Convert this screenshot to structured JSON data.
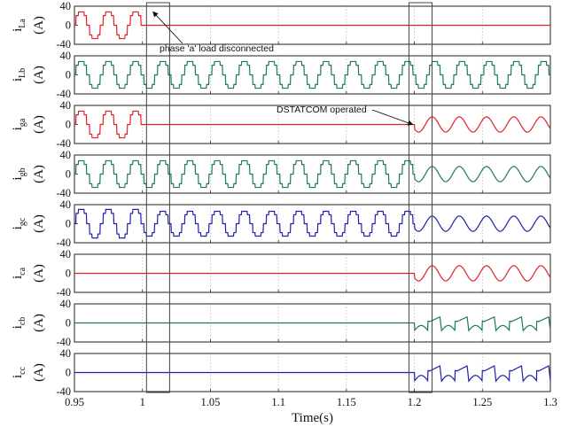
{
  "chart_data": {
    "type": "line",
    "xlabel": "Time(s)",
    "xlim": [
      0.95,
      1.3
    ],
    "x_ticks": [
      "0.95",
      "1",
      "1.05",
      "1.1",
      "1.15",
      "1.2",
      "1.25",
      "1.3"
    ],
    "grid": "vertical dotted at x ticks",
    "colors": {
      "phase_a": "#e0202a",
      "phase_b": "#1f7a56",
      "phase_c": "#2020a8"
    },
    "panels": [
      {
        "y_symbol": "i",
        "y_sub": "La",
        "unit": "(A)",
        "ylim": [
          -40,
          40
        ],
        "y_ticks": [
          "40",
          "0",
          "-40"
        ],
        "color": "#e0202a",
        "segments": [
          {
            "from": 0.95,
            "to": 1.0,
            "kind": "stepped",
            "amplitude": 28
          },
          {
            "from": 1.0,
            "to": 1.3,
            "kind": "zero"
          }
        ]
      },
      {
        "y_symbol": "i",
        "y_sub": "Lb",
        "unit": "(A)",
        "ylim": [
          -40,
          40
        ],
        "y_ticks": [
          "40",
          "0",
          "-40"
        ],
        "color": "#1f7a56",
        "segments": [
          {
            "from": 0.95,
            "to": 1.3,
            "kind": "stepped",
            "amplitude": 28
          }
        ]
      },
      {
        "y_symbol": "i",
        "y_sub": "ga",
        "unit": "(A)",
        "ylim": [
          -40,
          40
        ],
        "y_ticks": [
          "40",
          "0",
          "-40"
        ],
        "color": "#e0202a",
        "segments": [
          {
            "from": 0.95,
            "to": 1.0,
            "kind": "stepped",
            "amplitude": 28
          },
          {
            "from": 1.0,
            "to": 1.2,
            "kind": "zero"
          },
          {
            "from": 1.2,
            "to": 1.3,
            "kind": "sine",
            "amplitude": 16
          }
        ]
      },
      {
        "y_symbol": "i",
        "y_sub": "gb",
        "unit": "(A)",
        "ylim": [
          -40,
          40
        ],
        "y_ticks": [
          "40",
          "0",
          "-40"
        ],
        "color": "#1f7a56",
        "segments": [
          {
            "from": 0.95,
            "to": 1.2,
            "kind": "stepped",
            "amplitude": 28
          },
          {
            "from": 1.2,
            "to": 1.3,
            "kind": "sine",
            "amplitude": 16
          }
        ]
      },
      {
        "y_symbol": "i",
        "y_sub": "gc",
        "unit": "(A)",
        "ylim": [
          -40,
          40
        ],
        "y_ticks": [
          "40",
          "0",
          "-40"
        ],
        "color": "#2020a8",
        "segments": [
          {
            "from": 0.95,
            "to": 1.0,
            "kind": "stepped",
            "amplitude": 30
          },
          {
            "from": 1.0,
            "to": 1.2,
            "kind": "stepped",
            "amplitude": 26
          },
          {
            "from": 1.2,
            "to": 1.3,
            "kind": "sine",
            "amplitude": 16
          }
        ]
      },
      {
        "y_symbol": "i",
        "y_sub": "ca",
        "unit": "(A)",
        "ylim": [
          -40,
          40
        ],
        "y_ticks": [
          "40",
          "0",
          "-40"
        ],
        "color": "#e0202a",
        "segments": [
          {
            "from": 0.95,
            "to": 1.2,
            "kind": "zero"
          },
          {
            "from": 1.2,
            "to": 1.3,
            "kind": "sine",
            "amplitude": 16
          }
        ]
      },
      {
        "y_symbol": "i",
        "y_sub": "cb",
        "unit": "(A)",
        "ylim": [
          -40,
          40
        ],
        "y_ticks": [
          "40",
          "0",
          "-40"
        ],
        "color": "#1f7a56",
        "segments": [
          {
            "from": 0.95,
            "to": 1.2,
            "kind": "zero"
          },
          {
            "from": 1.2,
            "to": 1.3,
            "kind": "compensating",
            "amplitude": 18
          }
        ]
      },
      {
        "y_symbol": "i",
        "y_sub": "cc",
        "unit": "(A)",
        "ylim": [
          -40,
          40
        ],
        "y_ticks": [
          "40",
          "0",
          "-40"
        ],
        "color": "#2020a8",
        "segments": [
          {
            "from": 0.95,
            "to": 1.2,
            "kind": "zero"
          },
          {
            "from": 1.2,
            "to": 1.3,
            "kind": "compensating",
            "amplitude": 20
          }
        ]
      }
    ],
    "annotations": [
      {
        "text": "phase 'a' load disconnected",
        "target_x": 1.0,
        "target_panel": 0,
        "target_y": 28
      },
      {
        "text": "DSTATCOM operated",
        "target_x": 1.2,
        "target_panel": 2,
        "target_y": 0
      }
    ],
    "event_windows": [
      [
        1.003,
        1.02
      ],
      [
        1.196,
        1.213
      ]
    ]
  }
}
